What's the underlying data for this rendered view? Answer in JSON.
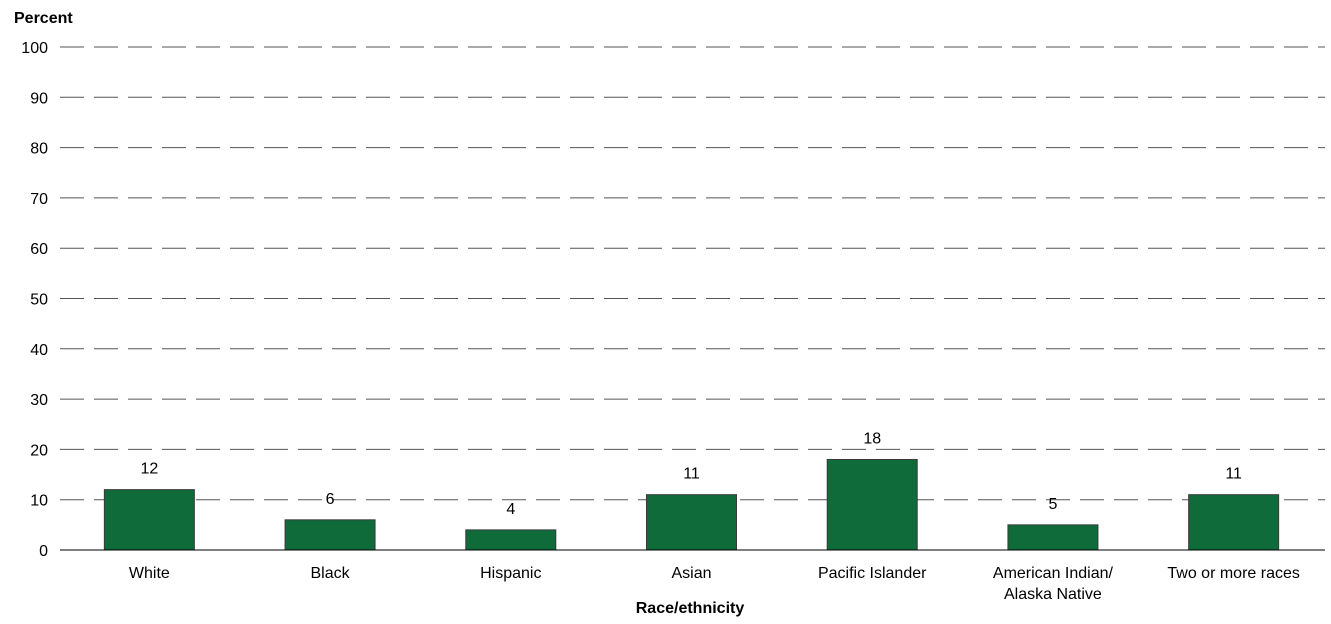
{
  "chart_data": {
    "type": "bar",
    "ylabel": "Percent",
    "xlabel": "Race/ethnicity",
    "ylim": [
      0,
      100
    ],
    "yticks": [
      0,
      10,
      20,
      30,
      40,
      50,
      60,
      70,
      80,
      90,
      100
    ],
    "grid": true,
    "bar_color": "#0f6b3a",
    "categories": [
      [
        "White"
      ],
      [
        "Black"
      ],
      [
        "Hispanic"
      ],
      [
        "Asian"
      ],
      [
        "Pacific Islander"
      ],
      [
        "American Indian/",
        "Alaska Native"
      ],
      [
        "Two or more races"
      ]
    ],
    "values": [
      12,
      6,
      4,
      11,
      18,
      5,
      11
    ],
    "data_labels": [
      "12",
      "6",
      "4",
      "11",
      "18",
      "5",
      "11"
    ]
  }
}
